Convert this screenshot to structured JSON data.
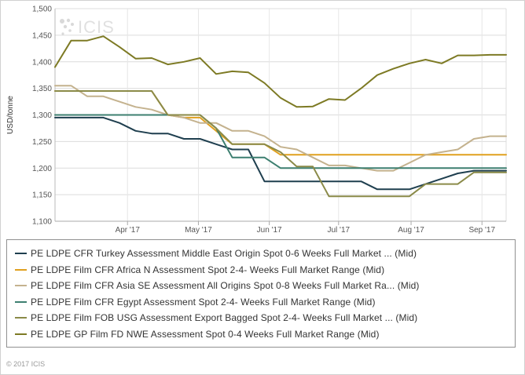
{
  "chart_data": {
    "type": "line",
    "ylabel": "USD/tonne",
    "ylim": [
      1100,
      1500
    ],
    "yticks": [
      1100,
      1150,
      1200,
      1250,
      1300,
      1350,
      1400,
      1450,
      1500
    ],
    "ytick_labels": [
      "1,100",
      "1,150",
      "1,200",
      "1,250",
      "1,300",
      "1,350",
      "1,400",
      "1,450",
      "1,500"
    ],
    "xlim": [
      0,
      28
    ],
    "xticks": [
      {
        "label": "Apr '17",
        "value": 4.5
      },
      {
        "label": "May '17",
        "value": 8.9
      },
      {
        "label": "Jun '17",
        "value": 13.3
      },
      {
        "label": "Jul '17",
        "value": 17.6
      },
      {
        "label": "Aug '17",
        "value": 22.1
      },
      {
        "label": "Sep '17",
        "value": 26.5
      }
    ],
    "grid": true,
    "legend_position": "bottom",
    "series": [
      {
        "name": "PE LDPE CFR Turkey Assessment Middle East Origin Spot 0-6 Weeks Full Market ... (Mid)",
        "color": "#1f3f4f",
        "x": [
          0,
          1,
          2,
          3,
          4,
          5,
          6,
          7,
          8,
          9,
          10,
          11,
          12,
          13,
          14,
          15,
          16,
          17,
          18,
          19,
          20,
          21,
          22,
          23,
          24,
          25,
          26,
          27,
          28
        ],
        "y": [
          1295,
          1295,
          1295,
          1295,
          1285,
          1270,
          1265,
          1265,
          1255,
          1255,
          1245,
          1235,
          1235,
          1175,
          1175,
          1175,
          1175,
          1175,
          1175,
          1175,
          1160,
          1160,
          1160,
          1170,
          1180,
          1190,
          1195,
          1195,
          1195
        ]
      },
      {
        "name": "PE LDPE Film CFR Africa N Assessment Spot 2-4- Weeks Full Market Range (Mid)",
        "color": "#e0a01e",
        "x": [
          0,
          1,
          2,
          3,
          4,
          5,
          6,
          7,
          8,
          9,
          10,
          11,
          12,
          13,
          14,
          15,
          16,
          17,
          18,
          19,
          20,
          21,
          22,
          23,
          24,
          25,
          26,
          27,
          28
        ],
        "y": [
          1345,
          1345,
          1345,
          1345,
          1345,
          1345,
          1345,
          1300,
          1295,
          1295,
          1270,
          1245,
          1245,
          1245,
          1225,
          1225,
          1225,
          1225,
          1225,
          1225,
          1225,
          1225,
          1225,
          1225,
          1225,
          1225,
          1225,
          1225,
          1225
        ]
      },
      {
        "name": "PE LDPE Film CFR Asia SE Assessment All Origins Spot 0-8 Weeks Full Market Ra... (Mid)",
        "color": "#c4b28e",
        "x": [
          0,
          1,
          2,
          3,
          4,
          5,
          6,
          7,
          8,
          9,
          10,
          11,
          12,
          13,
          14,
          15,
          16,
          17,
          18,
          19,
          20,
          21,
          22,
          23,
          24,
          25,
          26,
          27,
          28
        ],
        "y": [
          1355,
          1355,
          1335,
          1335,
          1325,
          1315,
          1310,
          1300,
          1295,
          1285,
          1285,
          1270,
          1270,
          1260,
          1240,
          1235,
          1220,
          1205,
          1205,
          1200,
          1195,
          1195,
          1210,
          1225,
          1230,
          1235,
          1255,
          1260,
          1260
        ]
      },
      {
        "name": "PE LDPE Film CFR Egypt Assessment Spot 2-4- Weeks Full Market Range (Mid)",
        "color": "#3d7f70",
        "x": [
          0,
          1,
          2,
          3,
          4,
          5,
          6,
          7,
          8,
          9,
          10,
          11,
          12,
          13,
          14,
          15,
          16,
          17,
          18,
          19,
          20,
          21,
          22,
          23,
          24,
          25,
          26,
          27,
          28
        ],
        "y": [
          1300,
          1300,
          1300,
          1300,
          1300,
          1300,
          1300,
          1300,
          1300,
          1300,
          1275,
          1220,
          1220,
          1220,
          1200,
          1200,
          1200,
          1200,
          1200,
          1200,
          1200,
          1200,
          1200,
          1200,
          1200,
          1200,
          1200,
          1200,
          1200
        ]
      },
      {
        "name": "PE LDPE Film FOB USG Assessment Export Bagged Spot 2-4- Weeks Full Market ... (Mid)",
        "color": "#8a8a48",
        "x": [
          0,
          1,
          2,
          3,
          4,
          5,
          6,
          7,
          8,
          9,
          10,
          11,
          12,
          13,
          14,
          15,
          16,
          17,
          18,
          19,
          20,
          21,
          22,
          23,
          24,
          25,
          26,
          27,
          28
        ],
        "y": [
          1345,
          1345,
          1345,
          1345,
          1345,
          1345,
          1345,
          1300,
          1300,
          1300,
          1275,
          1245,
          1245,
          1245,
          1230,
          1203,
          1203,
          1147,
          1147,
          1147,
          1147,
          1147,
          1147,
          1170,
          1170,
          1170,
          1192,
          1192,
          1192
        ]
      },
      {
        "name": "PE LDPE GP Film FD NWE Assessment Spot 0-4 Weeks Full Market Range (Mid)",
        "color": "#7d7a24",
        "x": [
          0,
          1,
          2,
          3,
          4,
          5,
          6,
          7,
          8,
          9,
          10,
          11,
          12,
          13,
          14,
          15,
          16,
          17,
          18,
          19,
          20,
          21,
          22,
          23,
          24,
          25,
          26,
          27,
          28
        ],
        "y": [
          1390,
          1440,
          1440,
          1448,
          1428,
          1406,
          1407,
          1395,
          1400,
          1407,
          1377,
          1382,
          1380,
          1360,
          1332,
          1315,
          1316,
          1330,
          1328,
          1350,
          1375,
          1387,
          1397,
          1404,
          1397,
          1412,
          1412,
          1413,
          1413
        ]
      }
    ]
  },
  "watermark": {
    "text": "ICIS",
    "icon": "icis-logo-icon"
  },
  "copyright": "© 2017 ICIS"
}
